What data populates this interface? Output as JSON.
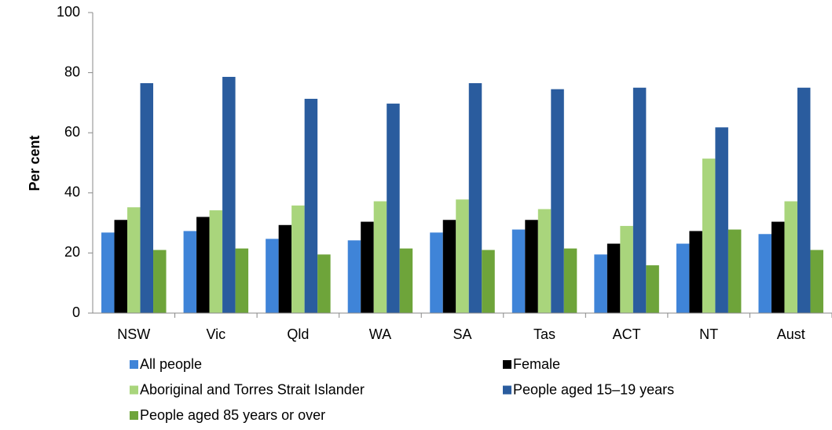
{
  "chart_data": {
    "type": "bar",
    "ylabel": "Per cent",
    "categories": [
      "NSW",
      "Vic",
      "Qld",
      "WA",
      "SA",
      "Tas",
      "ACT",
      "NT",
      "Aust"
    ],
    "series": [
      {
        "name": "All people",
        "color": "#3f84d8",
        "values": [
          26.8,
          27.3,
          24.7,
          24.2,
          26.8,
          27.8,
          19.5,
          23.1,
          26.3
        ]
      },
      {
        "name": "Female",
        "color": "#000000",
        "values": [
          31,
          32,
          29.3,
          30.4,
          31,
          31,
          23.1,
          27.3,
          30.4
        ]
      },
      {
        "name": "Aboriginal and Torres Strait Islander",
        "color": "#a9d57c",
        "values": [
          35.2,
          34.2,
          35.8,
          37.2,
          37.8,
          34.6,
          29,
          51.4,
          37.2
        ]
      },
      {
        "name": "People aged 15–19 years",
        "color": "#2a5c9e",
        "values": [
          76.5,
          78.6,
          71.3,
          69.7,
          76.5,
          74.5,
          75,
          61.8,
          75
        ]
      },
      {
        "name": "People aged 85 years or over",
        "color": "#6ea43a",
        "values": [
          21,
          21.5,
          19.5,
          21.5,
          21,
          21.5,
          15.9,
          27.8,
          21
        ]
      }
    ],
    "ylim": [
      0,
      100
    ],
    "yticks": [
      0,
      20,
      40,
      60,
      80,
      100
    ],
    "grid": false
  }
}
